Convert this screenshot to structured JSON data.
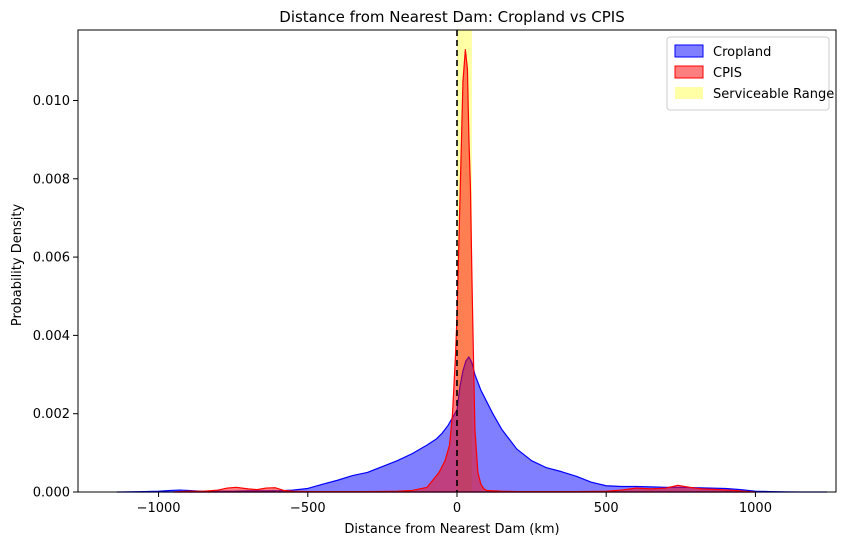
{
  "chart_data": {
    "type": "area",
    "title": "Distance from Nearest Dam: Cropland vs CPIS",
    "xlabel": "Distance from Nearest Dam (km)",
    "ylabel": "Probability Density",
    "xlim": [
      -1270,
      1270
    ],
    "ylim": [
      0,
      0.0118
    ],
    "xticks": [
      -1000,
      -500,
      0,
      500,
      1000
    ],
    "xtick_labels": [
      "−1000",
      "−500",
      "0",
      "500",
      "1000"
    ],
    "yticks": [
      0,
      0.002,
      0.004,
      0.006,
      0.008,
      0.01
    ],
    "ytick_labels": [
      "0.000",
      "0.002",
      "0.004",
      "0.006",
      "0.008",
      "0.010"
    ],
    "grid": false,
    "legend_position": "top-right",
    "reference_line": {
      "x": 0,
      "style": "dashed",
      "color": "#000000"
    },
    "span": {
      "name": "Serviceable Range",
      "x_range": [
        0,
        50
      ],
      "color": "#ffff00",
      "alpha": 0.35
    },
    "series": [
      {
        "name": "Cropland",
        "color": "#0000ff",
        "fill_alpha": 0.5,
        "x": [
          -1140,
          -1050,
          -1000,
          -960,
          -930,
          -900,
          -860,
          -800,
          -750,
          -700,
          -650,
          -600,
          -550,
          -500,
          -450,
          -400,
          -350,
          -300,
          -250,
          -200,
          -150,
          -100,
          -70,
          -50,
          -30,
          -15,
          0,
          10,
          20,
          30,
          40,
          50,
          60,
          70,
          80,
          100,
          120,
          150,
          200,
          250,
          300,
          350,
          400,
          450,
          500,
          550,
          600,
          650,
          700,
          750,
          800,
          850,
          900,
          950,
          1000,
          1050,
          1100,
          1150,
          1240
        ],
        "y": [
          0,
          1e-05,
          2e-05,
          4e-05,
          5e-05,
          4e-05,
          2e-05,
          2e-05,
          2e-05,
          3e-05,
          3e-05,
          3e-05,
          5e-05,
          9e-05,
          0.0002,
          0.0003,
          0.00042,
          0.0005,
          0.00065,
          0.0008,
          0.00098,
          0.0012,
          0.00135,
          0.0015,
          0.0017,
          0.0019,
          0.0021,
          0.0027,
          0.0031,
          0.00335,
          0.00345,
          0.0033,
          0.003,
          0.0028,
          0.0026,
          0.0023,
          0.002,
          0.0016,
          0.0011,
          0.0008,
          0.00062,
          0.00052,
          0.0004,
          0.00025,
          0.00016,
          0.00014,
          0.00014,
          0.00013,
          0.00012,
          0.00012,
          0.00011,
          0.0001,
          9e-05,
          6e-05,
          2e-05,
          1e-05,
          5e-06,
          2e-06,
          0
        ]
      },
      {
        "name": "CPIS",
        "color": "#ff0000",
        "fill_alpha": 0.5,
        "x": [
          -950,
          -900,
          -850,
          -800,
          -770,
          -740,
          -700,
          -670,
          -640,
          -610,
          -580,
          -550,
          -500,
          -400,
          -300,
          -200,
          -150,
          -100,
          -60,
          -40,
          -25,
          -15,
          -5,
          0,
          10,
          20,
          28,
          35,
          40,
          45,
          50,
          55,
          60,
          70,
          80,
          90,
          100,
          150,
          200,
          300,
          400,
          500,
          550,
          600,
          650,
          700,
          740,
          780,
          820,
          880,
          930,
          960,
          1000
        ],
        "y": [
          0,
          2e-05,
          2e-05,
          5e-05,
          0.0001,
          0.00012,
          8e-05,
          6e-05,
          0.0001,
          0.00011,
          4e-05,
          2e-05,
          1e-05,
          1e-05,
          1e-05,
          2e-05,
          4e-05,
          0.00012,
          0.0005,
          0.0008,
          0.0012,
          0.002,
          0.0035,
          0.0045,
          0.0075,
          0.0105,
          0.0113,
          0.0108,
          0.009,
          0.0078,
          0.0055,
          0.0035,
          0.0016,
          0.0005,
          0.0002,
          8e-05,
          4e-05,
          2e-05,
          1e-05,
          1e-05,
          1e-05,
          2e-05,
          5e-05,
          0.0001,
          8e-05,
          0.0001,
          0.00017,
          0.00012,
          8e-05,
          6e-05,
          4e-05,
          2e-05,
          0
        ]
      }
    ]
  }
}
